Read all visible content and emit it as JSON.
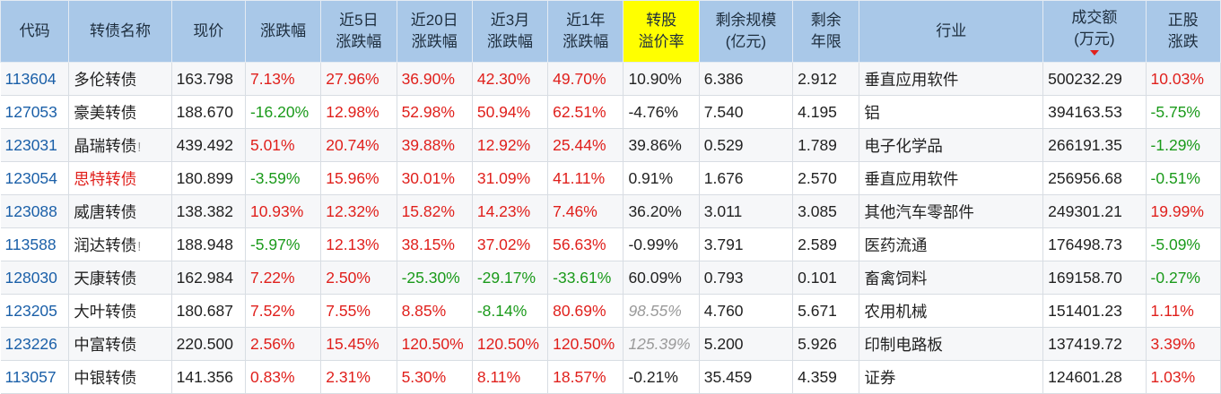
{
  "headers": [
    {
      "label": "代码"
    },
    {
      "label": "转债名称"
    },
    {
      "label": "现价"
    },
    {
      "label": "涨跌幅"
    },
    {
      "label": "近5日\n涨跌幅"
    },
    {
      "label": "近20日\n涨跌幅"
    },
    {
      "label": "近3月\n涨跌幅"
    },
    {
      "label": "近1年\n涨跌幅"
    },
    {
      "label": "转股\n溢价率"
    },
    {
      "label": "剩余规模\n(亿元)"
    },
    {
      "label": "剩余\n年限"
    },
    {
      "label": "行业"
    },
    {
      "label": "成交额\n(万元)"
    },
    {
      "label": "正股\n涨跌"
    }
  ],
  "colors": {
    "header_bg": "#a9c8e8",
    "highlight_header": "#ffff00",
    "up": "#e0201c",
    "down": "#1a9a1a",
    "code": "#1a5fa8"
  },
  "sort_indicator": "triangle-down-icon",
  "rows": [
    {
      "code": "113604",
      "name": "多伦转债",
      "mark": "",
      "name_color": "",
      "price": "163.798",
      "chg": "7.13%",
      "d5": "27.96%",
      "d20": "36.90%",
      "m3": "42.30%",
      "y1": "49.70%",
      "prem": "10.90%",
      "prem_style": "",
      "scale": "6.386",
      "years": "2.912",
      "industry": "垂直应用软件",
      "amount": "500232.29",
      "stock": "10.03%"
    },
    {
      "code": "127053",
      "name": "豪美转债",
      "mark": "",
      "name_color": "",
      "price": "188.670",
      "chg": "-16.20%",
      "d5": "12.98%",
      "d20": "52.98%",
      "m3": "50.94%",
      "y1": "62.51%",
      "prem": "-4.76%",
      "prem_style": "",
      "scale": "7.540",
      "years": "4.195",
      "industry": "铝",
      "amount": "394163.53",
      "stock": "-5.75%"
    },
    {
      "code": "123031",
      "name": "晶瑞转债",
      "mark": "!",
      "name_color": "",
      "price": "439.492",
      "chg": "5.01%",
      "d5": "20.74%",
      "d20": "39.88%",
      "m3": "12.92%",
      "y1": "25.44%",
      "prem": "39.86%",
      "prem_style": "",
      "scale": "0.529",
      "years": "1.789",
      "industry": "电子化学品",
      "amount": "266191.35",
      "stock": "-1.29%"
    },
    {
      "code": "123054",
      "name": "思特转债",
      "mark": "",
      "name_color": "red",
      "price": "180.899",
      "chg": "-3.59%",
      "d5": "15.96%",
      "d20": "30.01%",
      "m3": "31.09%",
      "y1": "41.11%",
      "prem": "0.91%",
      "prem_style": "",
      "scale": "1.676",
      "years": "2.570",
      "industry": "垂直应用软件",
      "amount": "256956.68",
      "stock": "-0.51%"
    },
    {
      "code": "123088",
      "name": "威唐转债",
      "mark": "",
      "name_color": "",
      "price": "138.382",
      "chg": "10.93%",
      "d5": "12.32%",
      "d20": "15.82%",
      "m3": "14.23%",
      "y1": "7.46%",
      "prem": "36.20%",
      "prem_style": "",
      "scale": "3.011",
      "years": "3.085",
      "industry": "其他汽车零部件",
      "amount": "249301.21",
      "stock": "19.99%"
    },
    {
      "code": "113588",
      "name": "润达转债",
      "mark": "!",
      "name_color": "",
      "price": "188.948",
      "chg": "-5.97%",
      "d5": "12.13%",
      "d20": "38.15%",
      "m3": "37.02%",
      "y1": "56.63%",
      "prem": "-0.99%",
      "prem_style": "",
      "scale": "3.791",
      "years": "2.589",
      "industry": "医药流通",
      "amount": "176498.73",
      "stock": "-5.09%"
    },
    {
      "code": "128030",
      "name": "天康转债",
      "mark": "",
      "name_color": "",
      "price": "162.984",
      "chg": "7.22%",
      "d5": "2.50%",
      "d20": "-25.30%",
      "m3": "-29.17%",
      "y1": "-33.61%",
      "prem": "60.09%",
      "prem_style": "",
      "scale": "0.793",
      "years": "0.101",
      "industry": "畜禽饲料",
      "amount": "169158.70",
      "stock": "-0.27%"
    },
    {
      "code": "123205",
      "name": "大叶转债",
      "mark": "",
      "name_color": "",
      "price": "180.687",
      "chg": "7.52%",
      "d5": "7.55%",
      "d20": "8.85%",
      "m3": "-8.14%",
      "y1": "80.69%",
      "prem": "98.55%",
      "prem_style": "italic-gray",
      "scale": "4.760",
      "years": "5.671",
      "industry": "农用机械",
      "amount": "151401.23",
      "stock": "1.11%"
    },
    {
      "code": "123226",
      "name": "中富转债",
      "mark": "",
      "name_color": "",
      "price": "220.500",
      "chg": "2.56%",
      "d5": "15.45%",
      "d20": "120.50%",
      "m3": "120.50%",
      "y1": "120.50%",
      "prem": "125.39%",
      "prem_style": "italic-gray",
      "scale": "5.200",
      "years": "5.926",
      "industry": "印制电路板",
      "amount": "137419.72",
      "stock": "3.39%"
    },
    {
      "code": "113057",
      "name": "中银转债",
      "mark": "",
      "name_color": "",
      "price": "141.356",
      "chg": "0.83%",
      "d5": "2.31%",
      "d20": "5.30%",
      "m3": "8.11%",
      "y1": "18.57%",
      "prem": "-0.21%",
      "prem_style": "",
      "scale": "35.459",
      "years": "4.359",
      "industry": "证券",
      "amount": "124601.28",
      "stock": "1.03%"
    }
  ]
}
